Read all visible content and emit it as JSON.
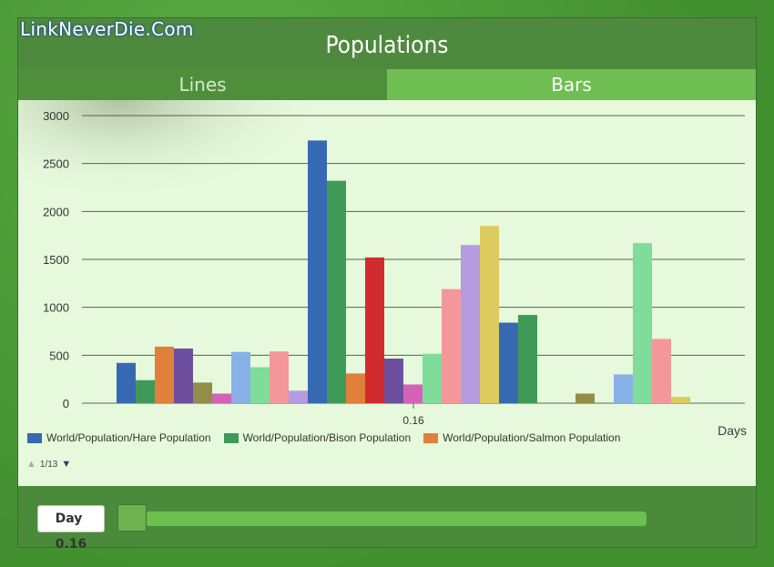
{
  "watermark": "LinkNeverDie.Com",
  "title": "Populations",
  "tabs": [
    {
      "label": "Lines",
      "active": false
    },
    {
      "label": "Bars",
      "active": true
    }
  ],
  "chart_data": {
    "type": "bar",
    "title": "",
    "xlabel": "Days",
    "ylabel": "",
    "ylim": [
      0,
      3000
    ],
    "yticks": [
      0,
      500,
      1000,
      1500,
      2000,
      2500,
      3000
    ],
    "categories": [
      "0.16"
    ],
    "bars": [
      {
        "color": "#3769b2",
        "value": 420
      },
      {
        "color": "#3f9a57",
        "value": 240
      },
      {
        "color": "#e0803a",
        "value": 590
      },
      {
        "color": "#6e4f9f",
        "value": 570
      },
      {
        "color": "#938d48",
        "value": 215
      },
      {
        "color": "#d463b8",
        "value": 100
      },
      {
        "color": "#88b1e7",
        "value": 535
      },
      {
        "color": "#7fdc99",
        "value": 375
      },
      {
        "color": "#f4979a",
        "value": 540
      },
      {
        "color": "#b59be0",
        "value": 130
      },
      {
        "color": "#3769b2",
        "value": 2740
      },
      {
        "color": "#3f9a57",
        "value": 2320
      },
      {
        "color": "#e0803a",
        "value": 310
      },
      {
        "color": "#d12a2f",
        "value": 1520
      },
      {
        "color": "#6e4f9f",
        "value": 465
      },
      {
        "color": "#d463b8",
        "value": 195
      },
      {
        "color": "#7fdc99",
        "value": 515
      },
      {
        "color": "#f4979a",
        "value": 1190
      },
      {
        "color": "#b59be0",
        "value": 1650
      },
      {
        "color": "#dccb5e",
        "value": 1850
      },
      {
        "color": "#3769b2",
        "value": 840
      },
      {
        "color": "#3f9a57",
        "value": 920
      },
      {
        "color": "#e0803a",
        "value": 0
      },
      {
        "color": "#d12a2f",
        "value": 0
      },
      {
        "color": "#938d48",
        "value": 100
      },
      {
        "color": "#d463b8",
        "value": 0
      },
      {
        "color": "#88b1e7",
        "value": 300
      },
      {
        "color": "#7fdc99",
        "value": 1670
      },
      {
        "color": "#f4979a",
        "value": 670
      },
      {
        "color": "#dccb5e",
        "value": 65
      }
    ],
    "legend": [
      {
        "name": "World/Population/Hare Population",
        "color": "#3769b2"
      },
      {
        "name": "World/Population/Bison Population",
        "color": "#3f9a57"
      },
      {
        "name": "World/Population/Salmon Population",
        "color": "#e0803a"
      }
    ],
    "legend_page": "1/13",
    "grid": true
  },
  "day_box": {
    "label": "Day",
    "value": "0.16"
  },
  "slider": {
    "value_fraction": 0.0
  }
}
